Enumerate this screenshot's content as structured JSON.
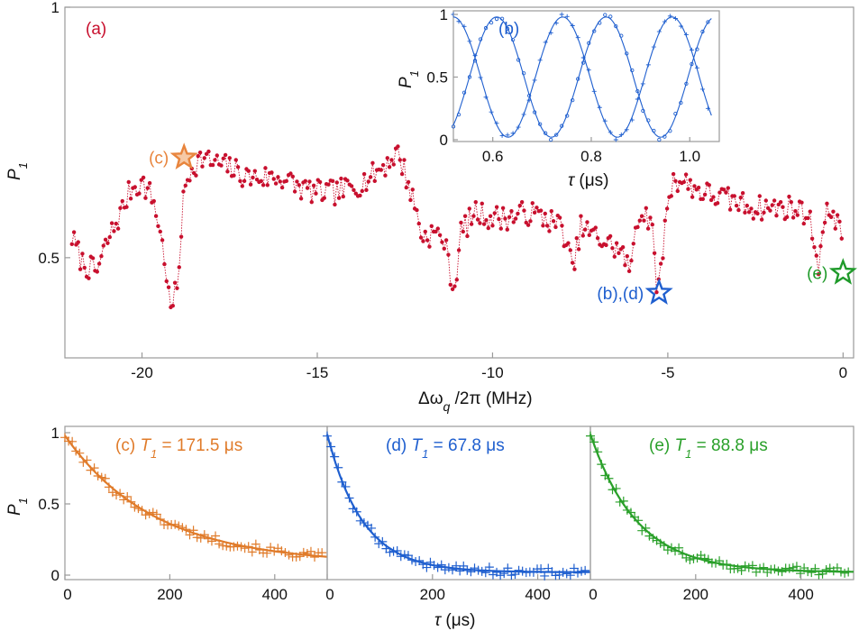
{
  "chart_data": [
    {
      "id": "a",
      "type": "line",
      "panel_label": "(a)",
      "xlabel": "Δω_q /2π (MHz)",
      "ylabel": "P_1",
      "xlim": [
        -22.2,
        0.3
      ],
      "ylim": [
        0.3,
        1.0
      ],
      "xticks": [
        -20,
        -15,
        -10,
        -5,
        0
      ],
      "yticks": [
        0.5,
        1
      ],
      "color": "#c8102e",
      "series": [
        {
          "name": "P1 vs detuning",
          "x": [],
          "values": []
        }
      ],
      "profile_points": [
        [
          -22.0,
          0.54
        ],
        [
          -21.7,
          0.49
        ],
        [
          -21.3,
          0.47
        ],
        [
          -21.0,
          0.53
        ],
        [
          -20.6,
          0.59
        ],
        [
          -20.3,
          0.64
        ],
        [
          -20.0,
          0.65
        ],
        [
          -19.7,
          0.62
        ],
        [
          -19.5,
          0.56
        ],
        [
          -19.3,
          0.47
        ],
        [
          -19.2,
          0.39
        ],
        [
          -19.0,
          0.44
        ],
        [
          -18.8,
          0.63
        ],
        [
          -18.6,
          0.68
        ],
        [
          -18.3,
          0.7
        ],
        [
          -18.0,
          0.69
        ],
        [
          -17.5,
          0.68
        ],
        [
          -17.0,
          0.66
        ],
        [
          -16.5,
          0.66
        ],
        [
          -16.0,
          0.66
        ],
        [
          -15.5,
          0.64
        ],
        [
          -15.0,
          0.63
        ],
        [
          -14.5,
          0.63
        ],
        [
          -14.0,
          0.64
        ],
        [
          -13.5,
          0.66
        ],
        [
          -13.0,
          0.69
        ],
        [
          -12.7,
          0.71
        ],
        [
          -12.5,
          0.67
        ],
        [
          -12.2,
          0.6
        ],
        [
          -12.0,
          0.54
        ],
        [
          -11.7,
          0.55
        ],
        [
          -11.4,
          0.54
        ],
        [
          -11.2,
          0.47
        ],
        [
          -11.1,
          0.43
        ],
        [
          -10.9,
          0.55
        ],
        [
          -10.5,
          0.59
        ],
        [
          -10.0,
          0.58
        ],
        [
          -9.5,
          0.58
        ],
        [
          -9.0,
          0.59
        ],
        [
          -8.5,
          0.58
        ],
        [
          -8.0,
          0.56
        ],
        [
          -7.8,
          0.5
        ],
        [
          -7.7,
          0.47
        ],
        [
          -7.5,
          0.56
        ],
        [
          -7.0,
          0.54
        ],
        [
          -6.5,
          0.52
        ],
        [
          -6.2,
          0.5
        ],
        [
          -6.1,
          0.46
        ],
        [
          -5.9,
          0.58
        ],
        [
          -5.6,
          0.59
        ],
        [
          -5.45,
          0.55
        ],
        [
          -5.3,
          0.44
        ],
        [
          -5.2,
          0.47
        ],
        [
          -5.0,
          0.62
        ],
        [
          -4.8,
          0.66
        ],
        [
          -4.5,
          0.65
        ],
        [
          -4.0,
          0.63
        ],
        [
          -3.5,
          0.62
        ],
        [
          -3.0,
          0.61
        ],
        [
          -2.5,
          0.6
        ],
        [
          -2.0,
          0.6
        ],
        [
          -1.5,
          0.6
        ],
        [
          -1.0,
          0.59
        ],
        [
          -0.7,
          0.49
        ],
        [
          -0.5,
          0.58
        ],
        [
          -0.3,
          0.6
        ],
        [
          0.0,
          0.53
        ]
      ],
      "markers": [
        {
          "label": "(c)",
          "x": -18.8,
          "y": 0.7,
          "color": "#e8843c"
        },
        {
          "label": "(b),(d)",
          "x": -5.25,
          "y": 0.43,
          "color": "#1f5fcf"
        },
        {
          "label": "(e)",
          "x": 0.0,
          "y": 0.47,
          "color": "#1f9a2a"
        }
      ]
    },
    {
      "id": "b",
      "type": "line",
      "panel_label": "(b)",
      "xlabel": "τ (μs)",
      "ylabel": "P_1",
      "xlim": [
        0.52,
        1.06
      ],
      "ylim": [
        0,
        1.0
      ],
      "xticks": [
        0.6,
        0.8,
        1.0
      ],
      "xtick_labels": [
        "0.6",
        "0.8",
        "1.0"
      ],
      "yticks": [
        0,
        0.5,
        1
      ],
      "color": "#1f5fcf",
      "series": [
        {
          "name": "circles",
          "marker": "o",
          "period_us": 0.222,
          "phase_zero_at_us": 0.497,
          "x": [],
          "values": []
        },
        {
          "name": "crosses",
          "marker": "+",
          "period_us": 0.222,
          "phase_zero_at_us": 0.409,
          "x": [],
          "values": []
        }
      ]
    },
    {
      "id": "c",
      "type": "scatter",
      "panel_label": "(c)",
      "title": "(c) T1 = 171.5 μs",
      "T1_us": 171.5,
      "amplitude": 0.9,
      "offset": 0.08,
      "xlabel": "",
      "ylabel": "P_1",
      "xlim": [
        0,
        500
      ],
      "ylim": [
        0,
        1.0
      ],
      "xticks": [
        0,
        200,
        400
      ],
      "yticks": [
        0,
        0.5,
        1
      ],
      "color": "#e07b2a",
      "series": [
        {
          "name": "data",
          "x": [],
          "values": []
        }
      ]
    },
    {
      "id": "d",
      "type": "scatter",
      "panel_label": "(d)",
      "title": "(d) T1 = 67.8 μs",
      "T1_us": 67.8,
      "amplitude": 0.97,
      "offset": 0.02,
      "xlabel": "τ (μs)",
      "ylabel": "",
      "xlim": [
        0,
        500
      ],
      "ylim": [
        0,
        1.0
      ],
      "xticks": [
        0,
        200,
        400
      ],
      "yticks": [],
      "color": "#1f5fcf",
      "series": [
        {
          "name": "data",
          "x": [],
          "values": []
        }
      ]
    },
    {
      "id": "e",
      "type": "scatter",
      "panel_label": "(e)",
      "title": "(e) T1 = 88.8 μs",
      "T1_us": 88.8,
      "amplitude": 0.97,
      "offset": 0.02,
      "xlabel": "",
      "ylabel": "",
      "xlim": [
        0,
        500
      ],
      "ylim": [
        0,
        1.0
      ],
      "xticks": [
        0,
        200,
        400
      ],
      "yticks": [],
      "color": "#2aa02a",
      "series": [
        {
          "name": "data",
          "x": [],
          "values": []
        }
      ]
    }
  ],
  "labels": {
    "a_xlabel_prefix": "Δω",
    "a_xlabel_sub": "q",
    "a_xlabel_suffix": " /2π (MHz)",
    "p_symbol": "P",
    "p_sub": "1",
    "tau_symbol": "τ",
    "tau_us_unit": " (μs)",
    "c_prefix": "(c) ",
    "d_prefix": "(d) ",
    "e_prefix": "(e) ",
    "t_symbol": "T",
    "t_sub": "1",
    "c_value": " = 171.5 μs",
    "d_value": " = 67.8 μs",
    "e_value": " = 88.8 μs"
  }
}
